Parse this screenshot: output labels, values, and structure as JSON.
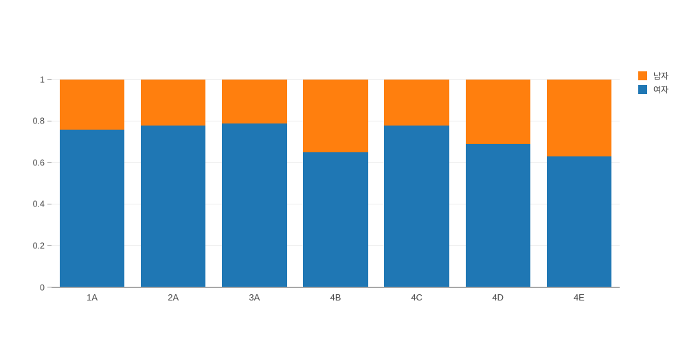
{
  "chart_data": {
    "type": "bar",
    "stacked": true,
    "normalized": true,
    "title": "",
    "xlabel": "",
    "ylabel": "",
    "categories": [
      "1A",
      "2A",
      "3A",
      "4B",
      "4C",
      "4D",
      "4E"
    ],
    "series": [
      {
        "name": "여자",
        "color": "#1f77b4",
        "values": [
          0.76,
          0.78,
          0.79,
          0.65,
          0.78,
          0.69,
          0.63
        ]
      },
      {
        "name": "남자",
        "color": "#ff7f0e",
        "values": [
          0.24,
          0.22,
          0.21,
          0.35,
          0.22,
          0.31,
          0.37
        ]
      }
    ],
    "ylim": [
      0,
      1
    ],
    "yticks": [
      "0",
      "0.2",
      "0.4",
      "0.6",
      "0.8",
      "1"
    ],
    "grid": true,
    "legend_position": "top-right",
    "legend_items": [
      {
        "label": "남자",
        "color": "#ff7f0e"
      },
      {
        "label": "여자",
        "color": "#1f77b4"
      }
    ]
  },
  "appearance": {
    "background": "#ffffff",
    "grid_color": "#ebebeb",
    "axis_line_color": "#a8a8a8",
    "tick_text_color": "#4a4a4a"
  }
}
